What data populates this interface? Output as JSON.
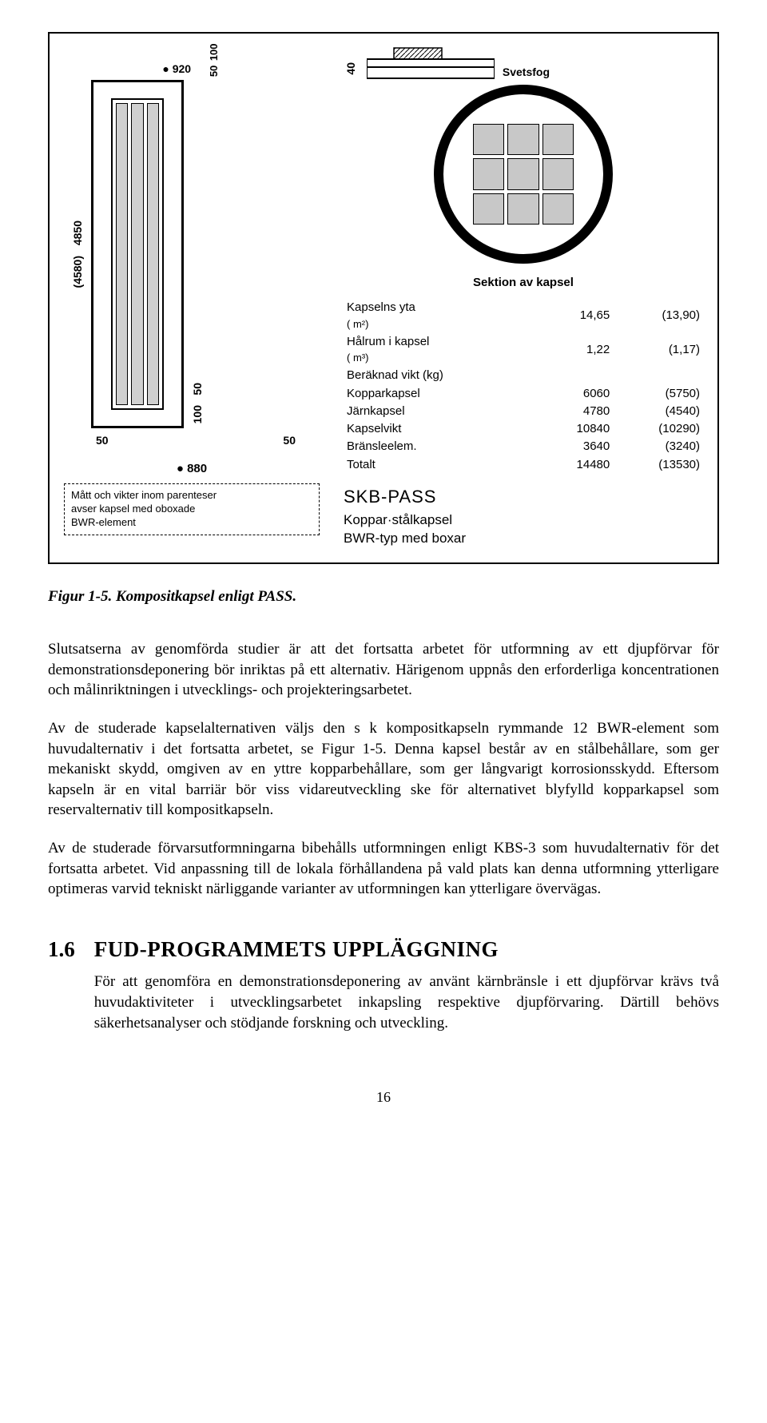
{
  "figure": {
    "dims": {
      "top_outer": "● 920",
      "top_small_a": "50",
      "top_small_b": "100",
      "left_outer": "4850",
      "left_paren": "(4580)",
      "bot_left": "50",
      "bot_right": "50",
      "right_small_a": "50",
      "right_small_b": "100",
      "dia_880": "● 880",
      "weld_dim": "40",
      "weld_label": "Svetsfog"
    },
    "note_line1": "Mått och vikter inom parenteser",
    "note_line2": "avser kapsel med oboxade",
    "note_line3": "BWR-element",
    "section_label": "Sektion av kapsel",
    "spec": [
      {
        "l": "Kapselns yta",
        "u": "( m²)",
        "v1": "14,65",
        "v2": "(13,90)"
      },
      {
        "l": "Hålrum i kapsel",
        "u": "( m³)",
        "v1": "1,22",
        "v2": "(1,17)"
      },
      {
        "l": "Beräknad vikt (kg)",
        "u": "",
        "v1": "",
        "v2": ""
      },
      {
        "l": "Kopparkapsel",
        "u": "",
        "v1": "6060",
        "v2": "(5750)"
      },
      {
        "l": "Järnkapsel",
        "u": "",
        "v1": "4780",
        "v2": "(4540)"
      },
      {
        "l": "Kapselvikt",
        "u": "",
        "v1": "10840",
        "v2": "(10290)"
      },
      {
        "l": "Bränsleelem.",
        "u": "",
        "v1": "3640",
        "v2": "(3240)"
      },
      {
        "l": "Totalt",
        "u": "",
        "v1": "14480",
        "v2": "(13530)"
      }
    ],
    "skb_title": "SKB-PASS",
    "skb_sub1": "Koppar·stålkapsel",
    "skb_sub2": "BWR-typ med boxar"
  },
  "caption_num": "Figur 1-5.",
  "caption_txt": " Kompositkapsel enligt PASS.",
  "para1": "Slutsatserna av genomförda studier är att det fortsatta arbetet för utformning av ett djupförvar för demonstrationsdeponering bör inriktas på ett alternativ. Härigenom uppnås den erforderliga koncentrationen och målinriktningen i utvecklings- och projekteringsarbetet.",
  "para2": "Av de studerade kapselalternativen väljs den s k kompositkapseln rymmande 12 BWR-element som huvudalternativ i det fortsatta arbetet, se Figur 1-5. Denna kapsel består av en stålbehållare, som ger mekaniskt skydd, omgiven av en yttre kopparbehållare, som ger långvarigt korrosionsskydd. Eftersom kapseln är en vital barriär bör viss vidareutveckling ske för alternativet blyfylld kopparkapsel som reservalternativ till kompositkapseln.",
  "para3": "Av de studerade förvarsutformningarna bibehålls utformningen enligt KBS-3 som huvudalternativ för det fortsatta arbetet. Vid anpassning till de lokala förhållandena på vald plats kan denna utformning ytterligare optimeras varvid tekniskt närliggande varianter av utformningen kan ytterligare övervägas.",
  "section_num": "1.6",
  "section_title": "FUD-PROGRAMMETS UPPLÄGGNING",
  "para4": "För att genomföra en demonstrationsdeponering av använt kärnbränsle i ett djupförvar krävs två huvudaktiviteter i utvecklingsarbetet   inkapsling respektive djupförvaring. Därtill behövs säkerhetsanalyser och stödjande forskning och utveckling.",
  "page_number": "16"
}
